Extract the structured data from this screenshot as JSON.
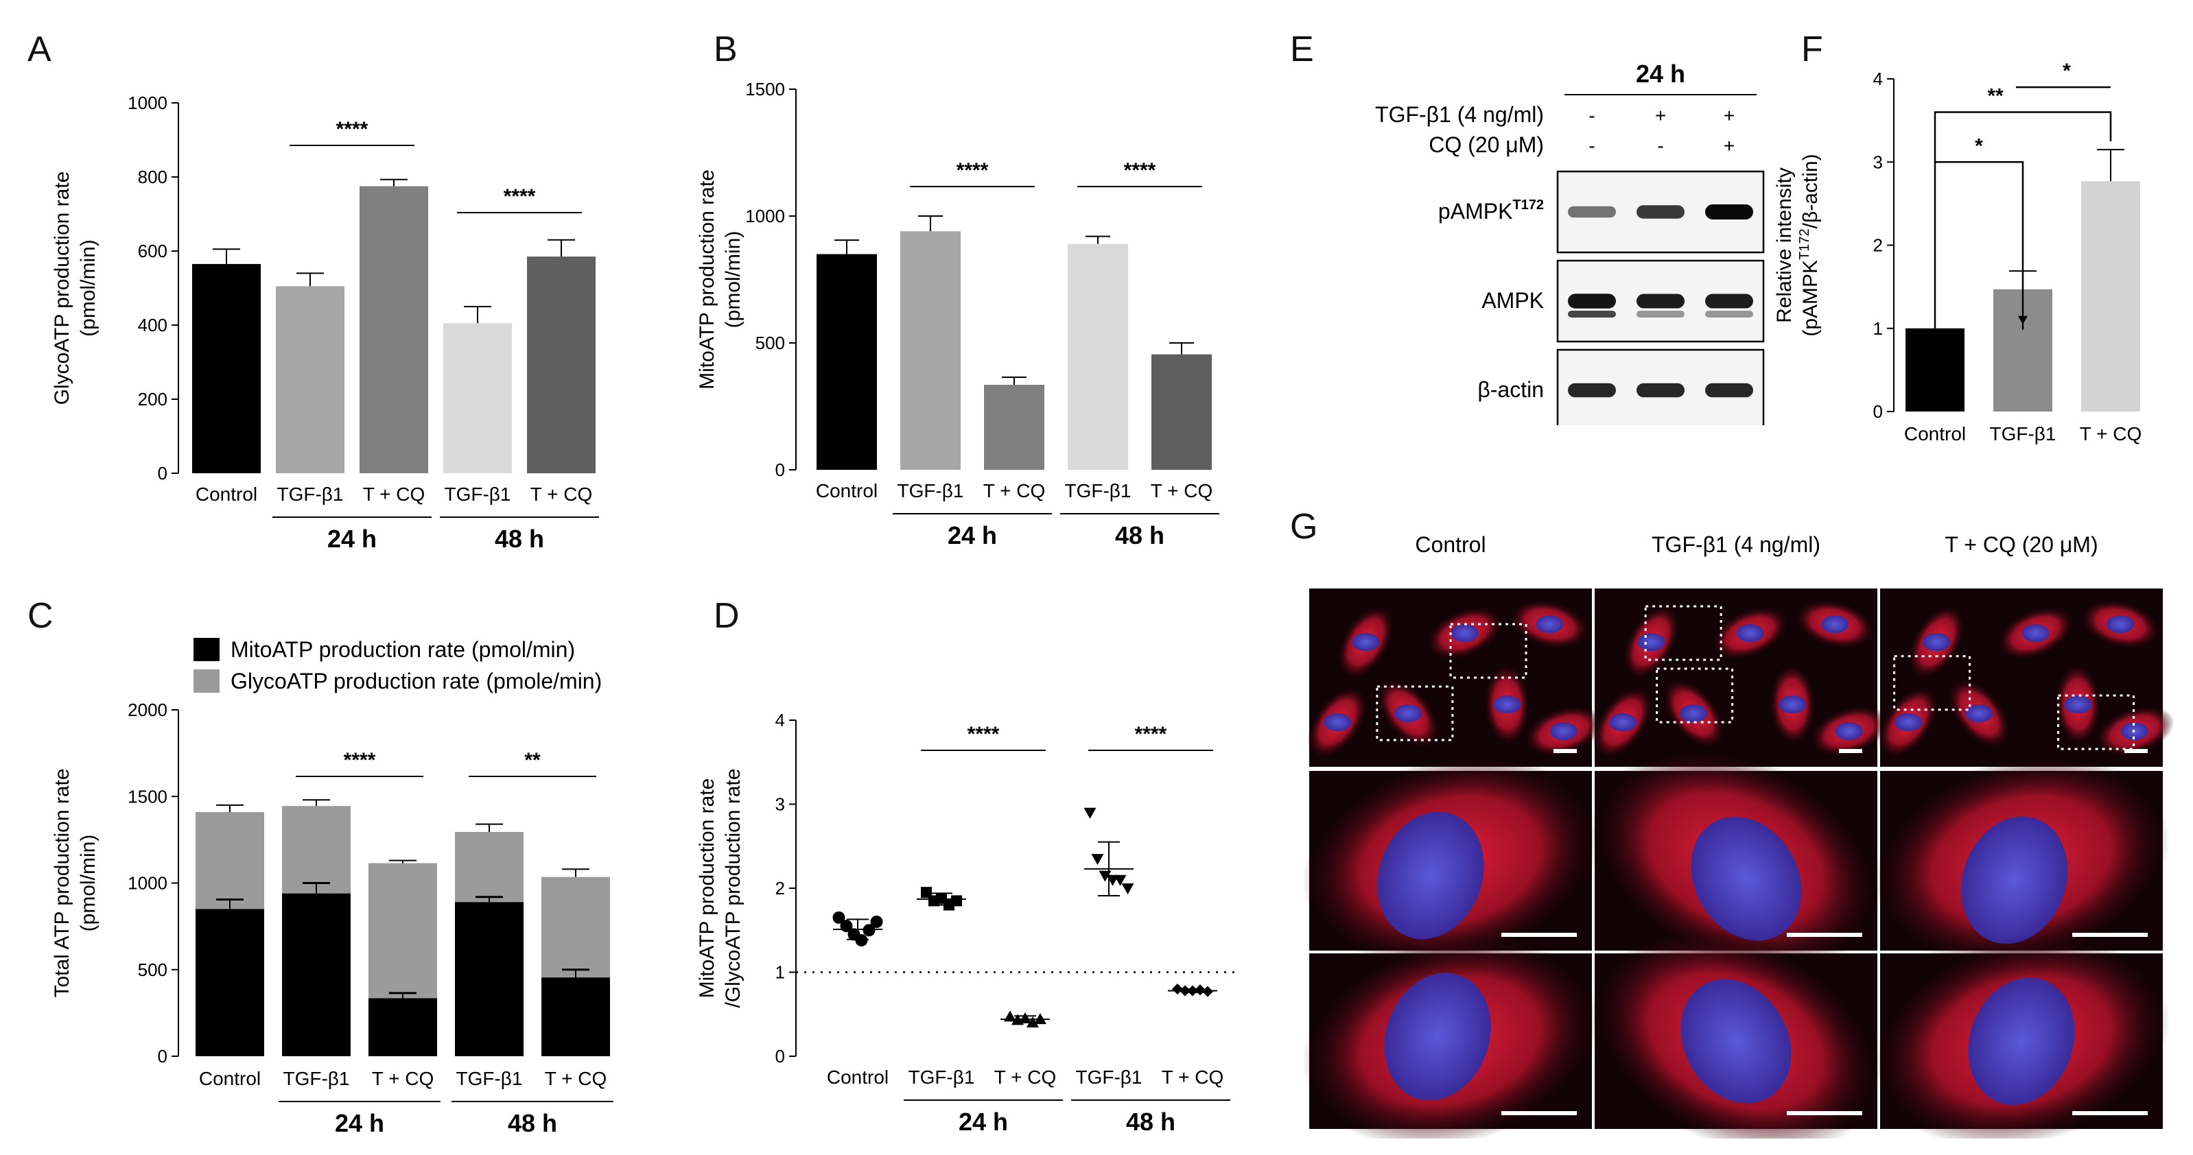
{
  "panel_letters": {
    "a": "A",
    "b": "B",
    "c": "C",
    "d": "D",
    "e": "E",
    "f": "F",
    "g": "G"
  },
  "colors": {
    "control": "#000000",
    "tgf24": "#a6a6a6",
    "tcq24": "#808080",
    "tgf48": "#d9d9d9",
    "tcq48": "#5f5f5f",
    "glyco": "#9b9b9b",
    "f_tgf": "#8c8c8c",
    "f_tcq": "#d4d4d4"
  },
  "common": {
    "cat_labels": [
      "Control",
      "TGF-β1",
      "T + CQ",
      "TGF-β1",
      "T + CQ"
    ],
    "groups": [
      "24 h",
      "48 h"
    ]
  },
  "chart_data": [
    {
      "id": "A",
      "type": "bar",
      "ylabel": [
        "GlycoATP production rate",
        "(pmol/min)"
      ],
      "ylim": [
        0,
        1000
      ],
      "yticks": [
        0,
        200,
        400,
        600,
        800,
        1000
      ],
      "categories": [
        "Control",
        "TGF-β1",
        "T + CQ",
        "TGF-β1",
        "T + CQ"
      ],
      "groups": [
        "24 h",
        "48 h"
      ],
      "values": [
        565,
        505,
        775,
        405,
        585
      ],
      "errors": [
        40,
        35,
        18,
        45,
        45
      ],
      "significance": [
        {
          "from": 1,
          "to": 2,
          "label": "****"
        },
        {
          "from": 3,
          "to": 4,
          "label": "****"
        }
      ]
    },
    {
      "id": "B",
      "type": "bar",
      "ylabel": [
        "MitoATP production rate",
        "(pmol/min)"
      ],
      "ylim": [
        0,
        1500
      ],
      "yticks": [
        0,
        500,
        1000,
        1500
      ],
      "categories": [
        "Control",
        "TGF-β1",
        "T + CQ",
        "TGF-β1",
        "T + CQ"
      ],
      "groups": [
        "24 h",
        "48 h"
      ],
      "values": [
        850,
        940,
        335,
        890,
        455
      ],
      "errors": [
        55,
        60,
        30,
        30,
        45
      ],
      "significance": [
        {
          "from": 1,
          "to": 2,
          "label": "****"
        },
        {
          "from": 3,
          "to": 4,
          "label": "****"
        }
      ]
    },
    {
      "id": "C",
      "type": "bar",
      "stacked": true,
      "ylabel": [
        "Total ATP production rate",
        "(pmol/min)"
      ],
      "ylim": [
        0,
        2000
      ],
      "yticks": [
        0,
        500,
        1000,
        1500,
        2000
      ],
      "categories": [
        "Control",
        "TGF-β1",
        "T + CQ",
        "TGF-β1",
        "T + CQ"
      ],
      "groups": [
        "24 h",
        "48 h"
      ],
      "legend": [
        "MitoATP production rate (pmol/min)",
        "GlycoATP production rate (pmole/min)"
      ],
      "series": [
        {
          "name": "MitoATP production rate (pmol/min)",
          "values": [
            850,
            940,
            335,
            890,
            455
          ],
          "errors": [
            55,
            60,
            30,
            30,
            45
          ]
        },
        {
          "name": "GlycoATP production rate (pmole/min)",
          "values": [
            560,
            505,
            780,
            405,
            580
          ],
          "errors": [
            40,
            35,
            15,
            45,
            45
          ]
        }
      ],
      "significance": [
        {
          "from": 1,
          "to": 2,
          "label": "****"
        },
        {
          "from": 3,
          "to": 4,
          "label": "**"
        }
      ]
    },
    {
      "id": "D",
      "type": "scatter",
      "ylabel": [
        "MitoATP production rate",
        "/GlycoATP production rate"
      ],
      "ylim": [
        0,
        4
      ],
      "yticks": [
        0,
        1,
        2,
        3,
        4
      ],
      "categories": [
        "Control",
        "TGF-β1",
        "T + CQ",
        "TGF-β1",
        "T + CQ"
      ],
      "groups": [
        "24 h",
        "48 h"
      ],
      "reference_line": 1,
      "markers": [
        "circle",
        "square",
        "triangle",
        "triangle-down",
        "diamond"
      ],
      "points": [
        [
          1.65,
          1.55,
          1.45,
          1.38,
          1.5,
          1.6
        ],
        [
          1.95,
          1.85,
          1.88,
          1.8,
          1.85
        ],
        [
          0.47,
          0.43,
          0.45,
          0.4,
          0.44
        ],
        [
          2.9,
          2.35,
          2.15,
          2.1,
          2.1,
          2.0
        ],
        [
          0.8,
          0.78,
          0.78,
          0.79,
          0.77
        ]
      ],
      "means": [
        1.51,
        1.87,
        0.44,
        2.23,
        0.78
      ],
      "sd": [
        0.12,
        0.07,
        0.04,
        0.32,
        0.02
      ],
      "significance": [
        {
          "from": 1,
          "to": 2,
          "label": "****"
        },
        {
          "from": 3,
          "to": 4,
          "label": "****"
        }
      ]
    },
    {
      "id": "F",
      "type": "bar",
      "ylabel": [
        "Relative intensity",
        "(pAMPK/β-actin)"
      ],
      "ylabel_sup": "T172",
      "ylim": [
        0,
        4
      ],
      "yticks": [
        0,
        1,
        2,
        3,
        4
      ],
      "categories": [
        "Control",
        "TGF-β1",
        "T + CQ"
      ],
      "values": [
        1.0,
        1.47,
        2.77
      ],
      "errors": [
        0,
        0.22,
        0.38
      ],
      "significance": [
        {
          "from": 0,
          "to": 1,
          "label": "*"
        },
        {
          "from": 0,
          "to": 2,
          "label": "**"
        },
        {
          "from": 1,
          "to": 2,
          "label": "*"
        }
      ]
    }
  ],
  "western": {
    "time": "24 h",
    "conditions": [
      {
        "label": "TGF-β1 (4 ng/ml)",
        "signs": [
          "-",
          "+",
          "+"
        ]
      },
      {
        "label": "CQ (20 μM)",
        "signs": [
          "-",
          "-",
          "+"
        ]
      }
    ],
    "blots": [
      {
        "name": "pAMPK",
        "sup": "T172",
        "band_strength": [
          0.45,
          0.75,
          1.0
        ]
      },
      {
        "name": "AMPK",
        "sup": "",
        "band_strength": [
          0.95,
          0.9,
          0.9
        ]
      },
      {
        "name": "β-actin",
        "sup": "",
        "band_strength": [
          0.85,
          0.85,
          0.85
        ]
      }
    ]
  },
  "microscopy": {
    "columns": [
      "Control",
      "TGF-β1 (4 ng/ml)",
      "T + CQ (20 μM)"
    ],
    "rows": 3
  }
}
